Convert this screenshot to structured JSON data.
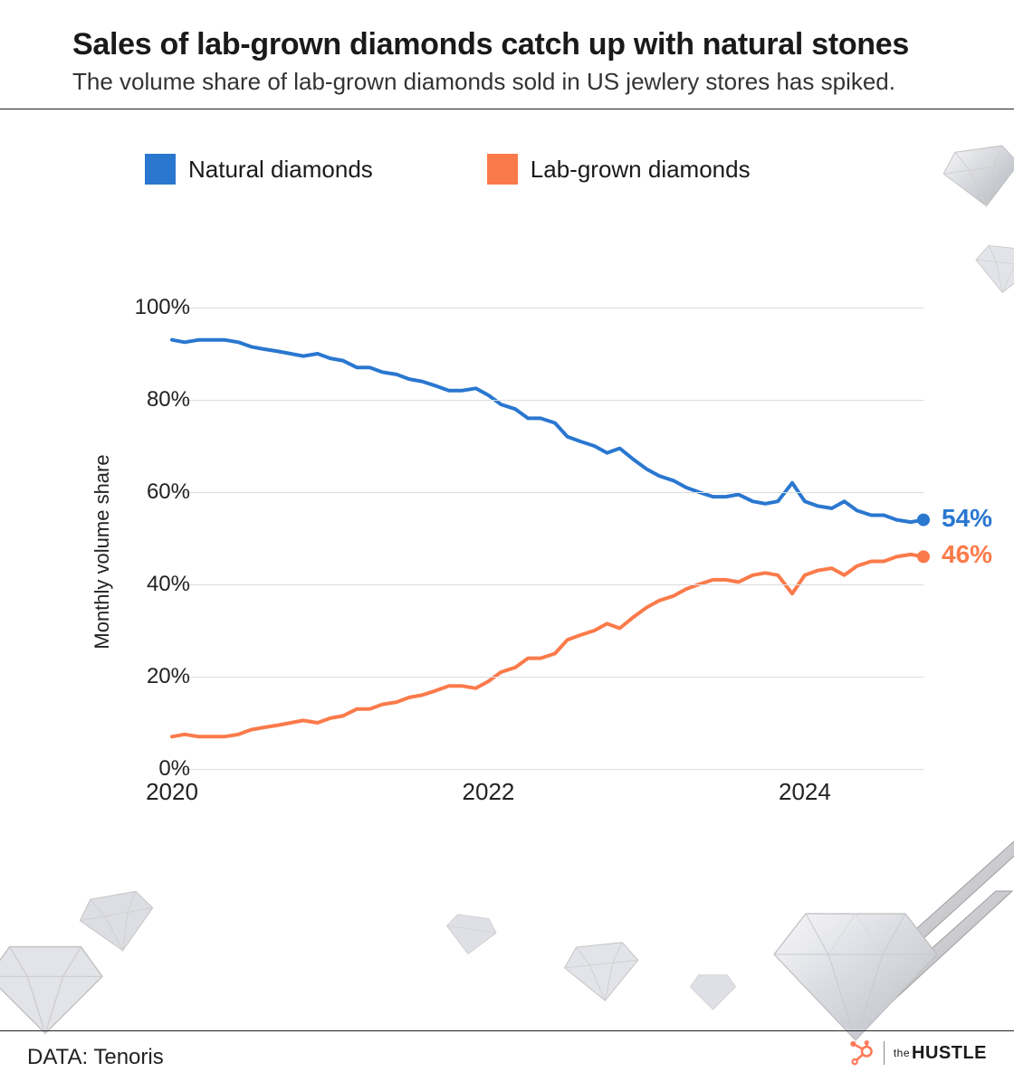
{
  "header": {
    "title": "Sales of lab-grown diamonds catch up with natural stones",
    "subtitle": "The volume share of lab-grown diamonds sold in US jewlery stores has spiked."
  },
  "legend": {
    "series_a": {
      "label": "Natural diamonds",
      "color": "#2a77d0"
    },
    "series_b": {
      "label": "Lab-grown diamonds",
      "color": "#fb7a4a"
    }
  },
  "chart": {
    "type": "line",
    "y_axis_label": "Monthly volume share",
    "ylim": [
      0,
      100
    ],
    "y_ticks": [
      0,
      20,
      40,
      60,
      80,
      100
    ],
    "y_tick_suffix": "%",
    "x_domain": [
      2020,
      2024.75
    ],
    "x_ticks": [
      2020,
      2022,
      2024
    ],
    "grid_color": "#dcdcdc",
    "background_color": "#ffffff",
    "line_width": 4,
    "marker_radius": 7,
    "series": {
      "natural": {
        "color": "#2a77d0",
        "end_label": "54%",
        "data": [
          [
            2020.0,
            93
          ],
          [
            2020.08,
            92.5
          ],
          [
            2020.17,
            93
          ],
          [
            2020.25,
            93
          ],
          [
            2020.33,
            93
          ],
          [
            2020.42,
            92.5
          ],
          [
            2020.5,
            91.5
          ],
          [
            2020.58,
            91
          ],
          [
            2020.67,
            90.5
          ],
          [
            2020.75,
            90
          ],
          [
            2020.83,
            89.5
          ],
          [
            2020.92,
            90
          ],
          [
            2021.0,
            89
          ],
          [
            2021.08,
            88.5
          ],
          [
            2021.17,
            87
          ],
          [
            2021.25,
            87
          ],
          [
            2021.33,
            86
          ],
          [
            2021.42,
            85.5
          ],
          [
            2021.5,
            84.5
          ],
          [
            2021.58,
            84
          ],
          [
            2021.67,
            83
          ],
          [
            2021.75,
            82
          ],
          [
            2021.83,
            82
          ],
          [
            2021.92,
            82.5
          ],
          [
            2022.0,
            81
          ],
          [
            2022.08,
            79
          ],
          [
            2022.17,
            78
          ],
          [
            2022.25,
            76
          ],
          [
            2022.33,
            76
          ],
          [
            2022.42,
            75
          ],
          [
            2022.5,
            72
          ],
          [
            2022.58,
            71
          ],
          [
            2022.67,
            70
          ],
          [
            2022.75,
            68.5
          ],
          [
            2022.83,
            69.5
          ],
          [
            2022.92,
            67
          ],
          [
            2023.0,
            65
          ],
          [
            2023.08,
            63.5
          ],
          [
            2023.17,
            62.5
          ],
          [
            2023.25,
            61
          ],
          [
            2023.33,
            60
          ],
          [
            2023.42,
            59
          ],
          [
            2023.5,
            59
          ],
          [
            2023.58,
            59.5
          ],
          [
            2023.67,
            58
          ],
          [
            2023.75,
            57.5
          ],
          [
            2023.83,
            58
          ],
          [
            2023.92,
            62
          ],
          [
            2024.0,
            58
          ],
          [
            2024.08,
            57
          ],
          [
            2024.17,
            56.5
          ],
          [
            2024.25,
            58
          ],
          [
            2024.33,
            56
          ],
          [
            2024.42,
            55
          ],
          [
            2024.5,
            55
          ],
          [
            2024.58,
            54
          ],
          [
            2024.67,
            53.5
          ],
          [
            2024.75,
            54
          ]
        ]
      },
      "lab": {
        "color": "#fb7a4a",
        "end_label": "46%",
        "data": [
          [
            2020.0,
            7
          ],
          [
            2020.08,
            7.5
          ],
          [
            2020.17,
            7
          ],
          [
            2020.25,
            7
          ],
          [
            2020.33,
            7
          ],
          [
            2020.42,
            7.5
          ],
          [
            2020.5,
            8.5
          ],
          [
            2020.58,
            9
          ],
          [
            2020.67,
            9.5
          ],
          [
            2020.75,
            10
          ],
          [
            2020.83,
            10.5
          ],
          [
            2020.92,
            10
          ],
          [
            2021.0,
            11
          ],
          [
            2021.08,
            11.5
          ],
          [
            2021.17,
            13
          ],
          [
            2021.25,
            13
          ],
          [
            2021.33,
            14
          ],
          [
            2021.42,
            14.5
          ],
          [
            2021.5,
            15.5
          ],
          [
            2021.58,
            16
          ],
          [
            2021.67,
            17
          ],
          [
            2021.75,
            18
          ],
          [
            2021.83,
            18
          ],
          [
            2021.92,
            17.5
          ],
          [
            2022.0,
            19
          ],
          [
            2022.08,
            21
          ],
          [
            2022.17,
            22
          ],
          [
            2022.25,
            24
          ],
          [
            2022.33,
            24
          ],
          [
            2022.42,
            25
          ],
          [
            2022.5,
            28
          ],
          [
            2022.58,
            29
          ],
          [
            2022.67,
            30
          ],
          [
            2022.75,
            31.5
          ],
          [
            2022.83,
            30.5
          ],
          [
            2022.92,
            33
          ],
          [
            2023.0,
            35
          ],
          [
            2023.08,
            36.5
          ],
          [
            2023.17,
            37.5
          ],
          [
            2023.25,
            39
          ],
          [
            2023.33,
            40
          ],
          [
            2023.42,
            41
          ],
          [
            2023.5,
            41
          ],
          [
            2023.58,
            40.5
          ],
          [
            2023.67,
            42
          ],
          [
            2023.75,
            42.5
          ],
          [
            2023.83,
            42
          ],
          [
            2023.92,
            38
          ],
          [
            2024.0,
            42
          ],
          [
            2024.08,
            43
          ],
          [
            2024.17,
            43.5
          ],
          [
            2024.25,
            42
          ],
          [
            2024.33,
            44
          ],
          [
            2024.42,
            45
          ],
          [
            2024.5,
            45
          ],
          [
            2024.58,
            46
          ],
          [
            2024.67,
            46.5
          ],
          [
            2024.75,
            46
          ]
        ]
      }
    }
  },
  "footer": {
    "source": "DATA: Tenoris",
    "brand": "HUSTLE",
    "brand_prefix": "the",
    "hubspot_color": "#ff7a59"
  }
}
